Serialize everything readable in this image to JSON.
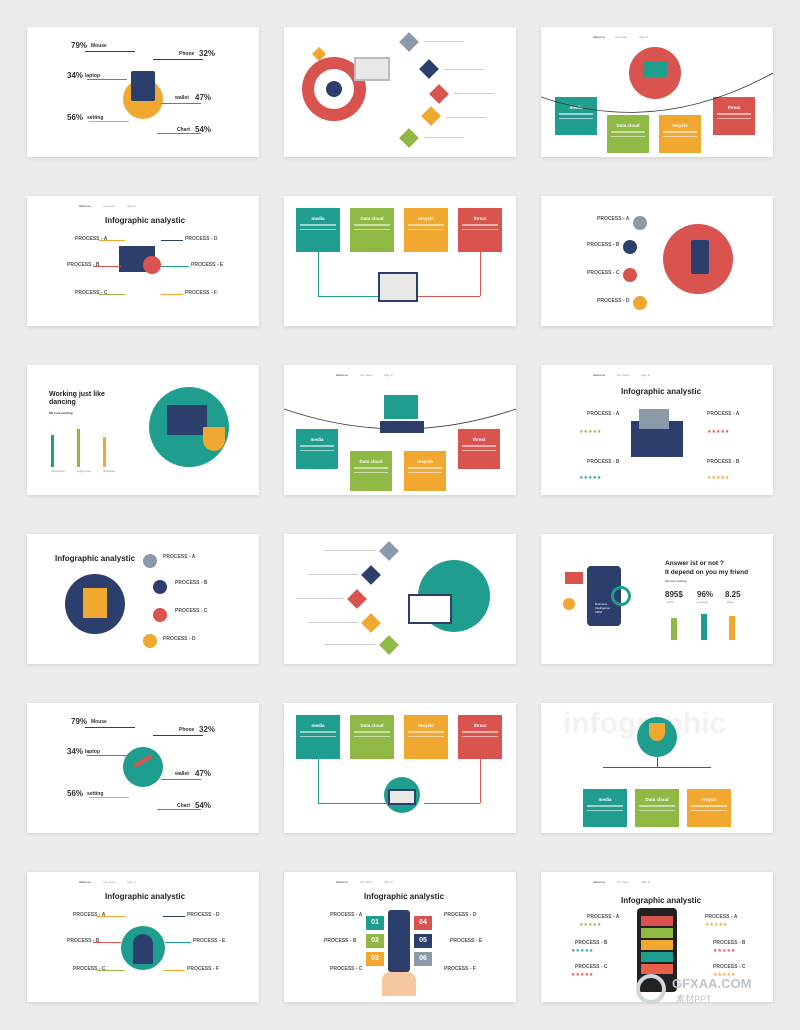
{
  "colors": {
    "teal": "#1f9e8f",
    "green": "#8fb845",
    "orange": "#f0a830",
    "red": "#d9534f",
    "coral": "#e8604c",
    "navy": "#2c3e6b",
    "grey": "#8a9aa8"
  },
  "stats_a": {
    "mouse_pct": "79%",
    "mouse_label": "Mouse",
    "laptop_pct": "34%",
    "laptop_label": "laptop",
    "setting_pct": "56%",
    "setting_label": "setting",
    "phone_label": "Phone",
    "phone_pct": "32%",
    "wallet_label": "wallet",
    "wallet_pct": "47%",
    "chart_label": "Chart",
    "chart_pct": "54%"
  },
  "nav": {
    "about": "About us",
    "team": "Our team",
    "sign": "Sign in"
  },
  "boxes": {
    "media": "media",
    "data_cloud": "Data cloud",
    "recycle": "recycle",
    "threat": "threat"
  },
  "infographic_title": "Infographic analystic",
  "process": {
    "a": "PROCESS - A",
    "b": "PROCESS - B",
    "c": "PROCESS - C",
    "d": "PROCESS - D",
    "e": "PROCESS - E",
    "f": "PROCESS - F"
  },
  "dancing": {
    "title": "Working just like dancing",
    "sub": "We love working",
    "bar1": "photoshop",
    "bar2": "Light room",
    "bar3": "Illustrator"
  },
  "answer": {
    "title1": "Answer ist or not ?",
    "title2": "It depend on you my friend",
    "sub": "We love working",
    "v1": "895$",
    "l1": "profit",
    "v2": "96%",
    "l2": "process",
    "v3": "8.25",
    "l3": "Rate",
    "screen": "Business Intelligence CRM"
  },
  "watermark_text": "infographic",
  "numbers": {
    "n1": "01",
    "n2": "02",
    "n3": "03",
    "n4": "04",
    "n5": "05",
    "n6": "06"
  },
  "logo": {
    "brand": "GFXAA.COM",
    "sub": "素材PPT"
  }
}
